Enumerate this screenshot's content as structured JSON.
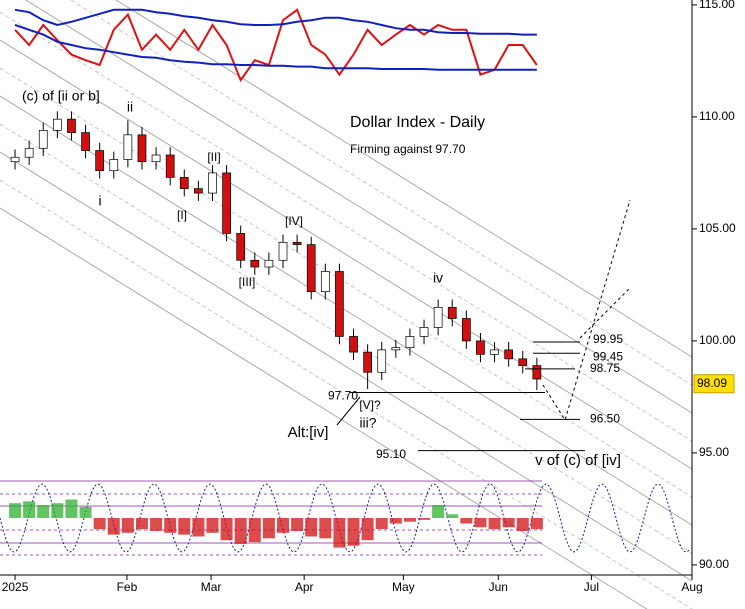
{
  "chart_data": {
    "type": "candlestick",
    "title": "Dollar Index - Daily",
    "subtitle": "Firming against 97.70",
    "x": [
      0,
      3,
      6,
      9,
      12,
      15,
      18,
      21,
      24,
      27,
      30,
      33,
      36,
      39,
      42,
      45,
      48,
      51,
      54,
      57,
      60,
      63,
      66,
      69,
      72,
      75,
      78,
      81,
      84,
      87,
      90,
      93,
      96,
      99,
      102,
      105,
      108,
      111
    ],
    "open": [
      108.0,
      108.2,
      108.6,
      109.4,
      109.9,
      109.3,
      108.5,
      107.6,
      108.1,
      109.2,
      108.0,
      108.3,
      107.3,
      106.8,
      106.6,
      107.5,
      104.8,
      103.6,
      103.3,
      103.6,
      104.4,
      104.3,
      102.2,
      103.1,
      100.2,
      99.5,
      98.6,
      99.6,
      99.7,
      100.2,
      100.6,
      101.5,
      101.0,
      100.0,
      99.4,
      99.6,
      99.2,
      98.9
    ],
    "high": [
      108.55,
      108.95,
      109.75,
      110.25,
      110.25,
      109.65,
      108.85,
      108.45,
      109.85,
      109.55,
      108.65,
      108.65,
      107.65,
      107.15,
      107.85,
      107.85,
      105.15,
      103.95,
      103.95,
      104.75,
      104.75,
      104.65,
      103.45,
      103.45,
      100.55,
      99.85,
      99.95,
      100.05,
      100.55,
      100.95,
      101.85,
      101.85,
      101.35,
      100.35,
      99.95,
      99.95,
      99.55,
      99.25
    ],
    "low": [
      107.65,
      107.85,
      108.25,
      109.05,
      108.95,
      108.15,
      107.25,
      107.25,
      107.75,
      107.65,
      107.65,
      106.95,
      106.45,
      106.25,
      106.25,
      104.45,
      103.25,
      102.95,
      102.95,
      103.25,
      103.95,
      101.85,
      101.85,
      99.85,
      99.15,
      97.85,
      98.25,
      99.25,
      99.35,
      99.85,
      100.25,
      100.65,
      99.65,
      99.05,
      99.05,
      98.85,
      98.55,
      97.8
    ],
    "close": [
      108.2,
      108.6,
      109.4,
      109.9,
      109.3,
      108.5,
      107.6,
      108.1,
      109.2,
      108.0,
      108.3,
      107.3,
      106.8,
      106.6,
      107.5,
      104.8,
      103.6,
      103.3,
      103.6,
      104.4,
      104.3,
      102.2,
      103.1,
      100.2,
      99.5,
      98.6,
      99.6,
      99.7,
      100.2,
      100.6,
      101.5,
      101.0,
      100.0,
      99.4,
      99.6,
      99.2,
      98.9,
      98.3
    ],
    "up_color": "#ffffff",
    "down_color": "#d01010",
    "xlim": [
      -3.2,
      144
    ],
    "ylim": [
      89.55,
      115.22
    ],
    "xticks": [
      {
        "value": 0,
        "label": "2025"
      },
      {
        "value": 23.8,
        "label": "Feb"
      },
      {
        "value": 41.7,
        "label": "Mar"
      },
      {
        "value": 61.5,
        "label": "Apr"
      },
      {
        "value": 82.6,
        "label": "May"
      },
      {
        "value": 102.8,
        "label": "Jun"
      },
      {
        "value": 122.6,
        "label": "Jul"
      },
      {
        "value": 144,
        "label": "Aug"
      }
    ],
    "yticks": [
      {
        "value": 90,
        "label": "90.00"
      },
      {
        "value": 95,
        "label": "95.00"
      },
      {
        "value": 100,
        "label": "100.00"
      },
      {
        "value": 105,
        "label": "105.00"
      },
      {
        "value": 110,
        "label": "110.00"
      },
      {
        "value": 115,
        "label": "115.00"
      }
    ],
    "last_price": 98.09,
    "levels": [
      99.95,
      99.45,
      98.75,
      97.7,
      96.5,
      95.1
    ],
    "level_labels": [
      "99.95",
      "99.45",
      "98.75",
      "97.70",
      "96.50",
      "95.10"
    ],
    "annotations": [
      "(c) of [ii or b]",
      "ii",
      "i",
      "[II]",
      "[I]",
      "[IV]",
      "[III]",
      "iv",
      "[V]?",
      "iii?",
      "Alt:[iv]",
      "v of (c) of [iv]"
    ],
    "upper_indicator": {
      "ylim": [
        0,
        100
      ],
      "series": [
        {
          "color": "#e01010",
          "values": [
            69,
            50,
            75,
            56,
            38,
            31,
            25,
            69,
            88,
            44,
            63,
            44,
            69,
            44,
            75,
            50,
            6,
            31,
            25,
            81,
            94,
            50,
            38,
            13,
            38,
            69,
            50,
            63,
            75,
            63,
            75,
            69,
            69,
            13,
            19,
            50,
            50,
            25
          ]
        },
        {
          "color": "#1020c0",
          "values": [
            94,
            91,
            81,
            75,
            79,
            84,
            89,
            94,
            94,
            94,
            91,
            89,
            86,
            84,
            81,
            79,
            76,
            75,
            75,
            76,
            79,
            81,
            84,
            84,
            81,
            79,
            75,
            71,
            69,
            69,
            66,
            65,
            65,
            64,
            64,
            64,
            63,
            63
          ]
        },
        {
          "color": "#1020c0",
          "values": [
            75,
            69,
            63,
            54,
            50,
            46,
            44,
            41,
            38,
            35,
            34,
            31,
            29,
            28,
            26,
            26,
            25,
            25,
            24,
            24,
            23,
            23,
            21,
            21,
            21,
            21,
            20,
            20,
            20,
            20,
            19,
            19,
            19,
            19,
            19,
            19,
            19,
            19
          ]
        }
      ]
    },
    "lower_indicator": {
      "ylim": [
        -100,
        100
      ],
      "pos_color": "#30b030",
      "neg_color": "#d01010",
      "values": [
        40,
        45,
        35,
        40,
        50,
        30,
        -30,
        -45,
        -40,
        -30,
        -35,
        -40,
        -45,
        -50,
        -40,
        -60,
        -70,
        -65,
        -55,
        -40,
        -35,
        -50,
        -55,
        -80,
        -75,
        -60,
        -30,
        -15,
        -10,
        -5,
        35,
        10,
        -15,
        -25,
        -30,
        -25,
        -35,
        -30
      ]
    }
  }
}
